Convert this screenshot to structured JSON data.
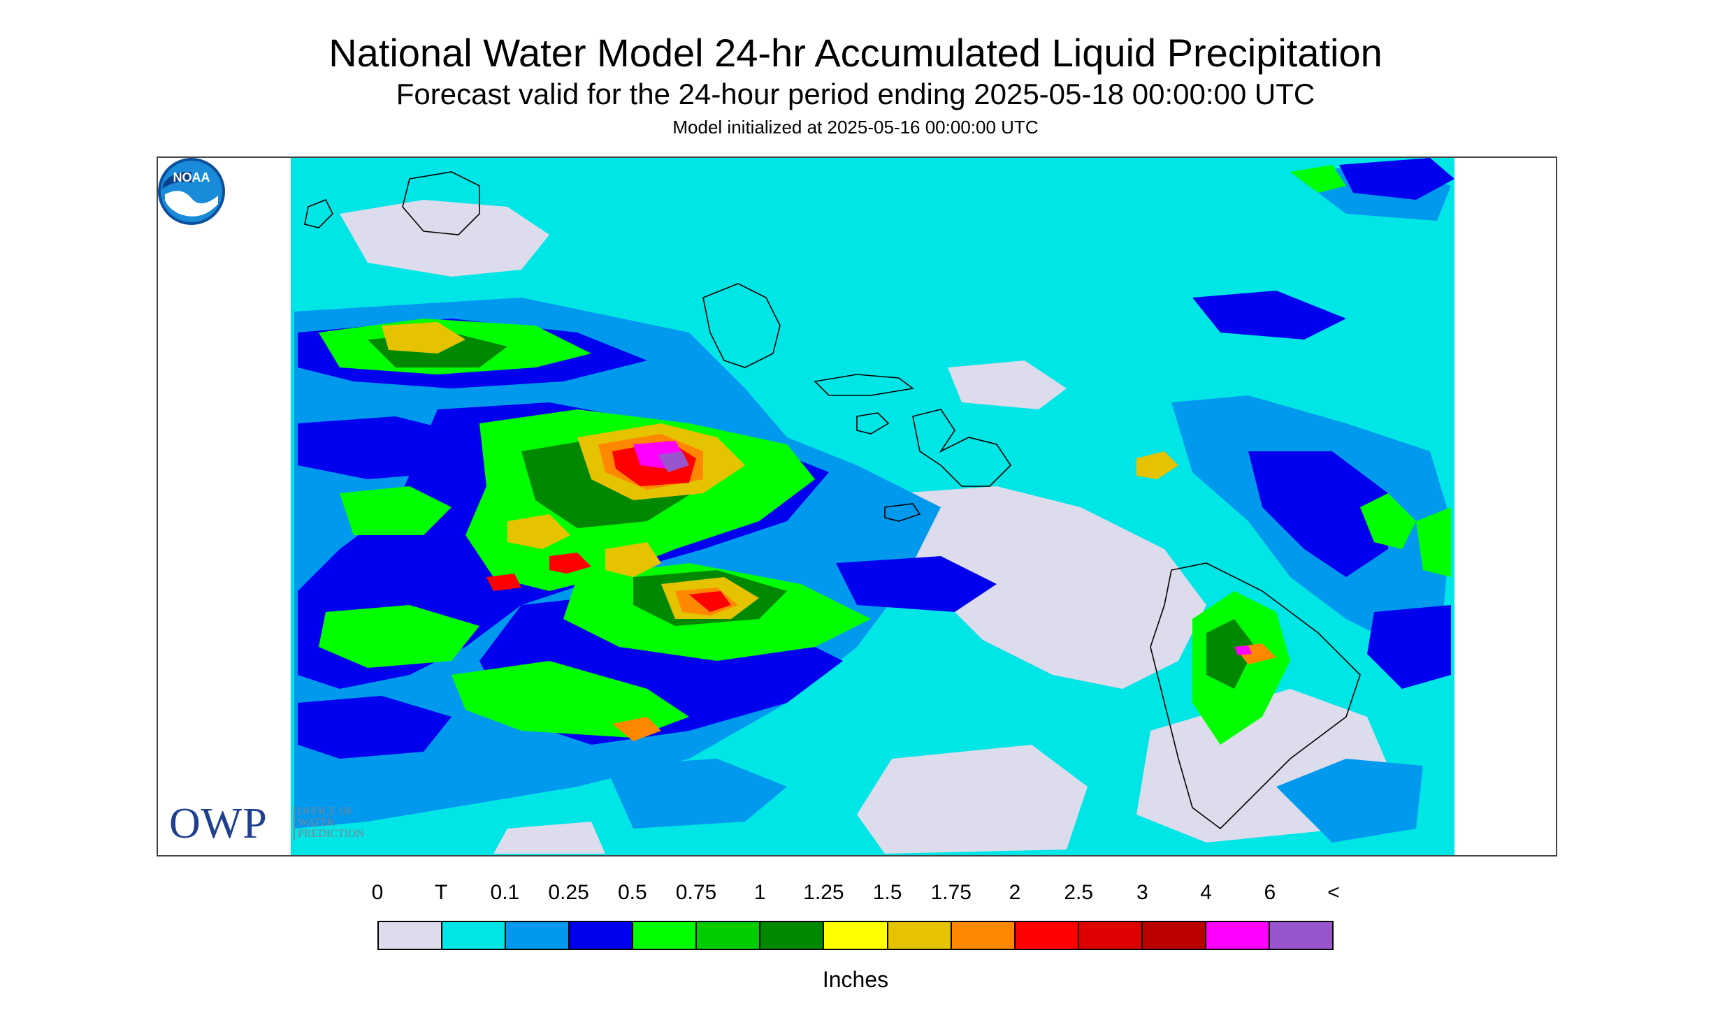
{
  "header": {
    "title": "National Water Model 24-hr Accumulated Liquid Precipitation",
    "subtitle": "Forecast valid for the 24-hour period ending 2025-05-18 00:00:00 UTC",
    "init": "Model initialized at 2025-05-16 00:00:00 UTC"
  },
  "logos": {
    "owp_big": "OWP",
    "owp_line1": "OFFICE OF",
    "owp_line2": "WATER",
    "owp_line3": "PREDICTION",
    "noaa": "NOAA"
  },
  "legend": {
    "labels": [
      "0",
      "T",
      "0.1",
      "0.25",
      "0.5",
      "0.75",
      "1",
      "1.25",
      "1.5",
      "1.75",
      "2",
      "2.5",
      "3",
      "4",
      "6",
      "<"
    ],
    "colors": [
      "#dcdcec",
      "#00e5e5",
      "#0099ee",
      "#0000ee",
      "#00ff00",
      "#00cc00",
      "#008800",
      "#ffff00",
      "#e5c300",
      "#ff8800",
      "#ff0000",
      "#dd0000",
      "#bb0000",
      "#ff00ff",
      "#9955cc"
    ],
    "units": "Inches"
  },
  "map": {
    "region": "Hawaiian Islands",
    "islands": [
      "Niihau",
      "Kauai",
      "Oahu",
      "Molokai",
      "Lanai",
      "Maui",
      "Kahoolawe",
      "Hawaii"
    ]
  }
}
